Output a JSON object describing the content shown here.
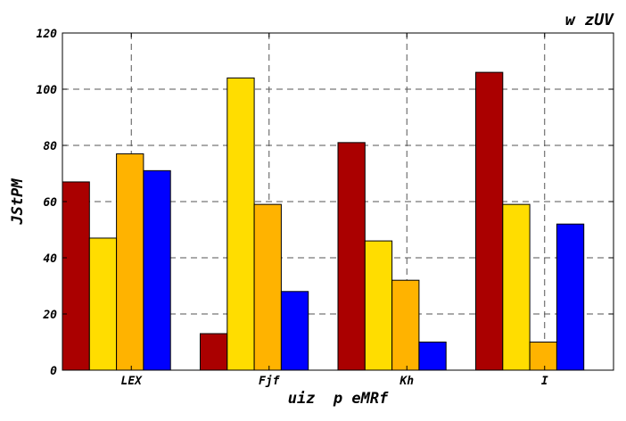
{
  "chart_data": {
    "type": "bar",
    "title": "w zUV",
    "xlabel": "uiz  p eMRf",
    "ylabel": "JStPM",
    "categories": [
      "LEX",
      "Fjf",
      "Kh",
      "I"
    ],
    "series": [
      {
        "color": "#aa0000",
        "values": [
          67,
          13,
          81,
          106
        ]
      },
      {
        "color": "#ffdd00",
        "values": [
          47,
          104,
          46,
          59
        ]
      },
      {
        "color": "#ffb300",
        "values": [
          77,
          59,
          32,
          10
        ]
      },
      {
        "color": "#0000ff",
        "values": [
          71,
          28,
          10,
          52
        ]
      }
    ],
    "ylim": [
      0,
      120
    ],
    "yticks": [
      0,
      20,
      40,
      60,
      80,
      100,
      120
    ],
    "grid": true,
    "legend": "none"
  }
}
